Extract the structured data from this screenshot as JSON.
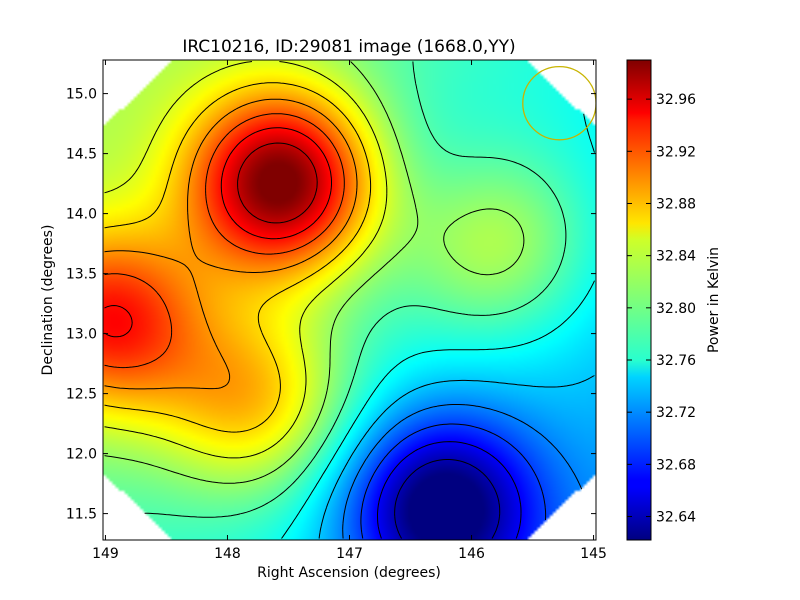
{
  "chart_data": {
    "type": "heatmap",
    "title": "IRC10216, ID:29081 image (1668.0,YY)",
    "xlabel": "Right Ascension (degrees)",
    "ylabel": "Declination (degrees)",
    "xlim": [
      149.02,
      144.98
    ],
    "ylim": [
      11.28,
      15.28
    ],
    "x_reversed": true,
    "x_ticks": [
      149,
      148,
      147,
      146,
      145
    ],
    "x_tick_labels": [
      "149",
      "148",
      "147",
      "146",
      "145"
    ],
    "y_ticks": [
      11.5,
      12.0,
      12.5,
      13.0,
      13.5,
      14.0,
      14.5,
      15.0
    ],
    "y_tick_labels": [
      "11.5",
      "12.0",
      "12.5",
      "13.0",
      "13.5",
      "14.0",
      "14.5",
      "15.0"
    ],
    "colormap": "jet",
    "colorbar": {
      "label": "Power in Kelvin",
      "range": [
        32.622,
        32.99
      ],
      "ticks": [
        32.64,
        32.68,
        32.72,
        32.76,
        32.8,
        32.84,
        32.88,
        32.92,
        32.96
      ],
      "tick_labels": [
        "32.64",
        "32.68",
        "32.72",
        "32.76",
        "32.80",
        "32.84",
        "32.88",
        "32.92",
        "32.96"
      ]
    },
    "field_shape": "octagon",
    "peaks": [
      {
        "ra": 147.55,
        "dec": 14.25,
        "value": 32.98
      },
      {
        "ra": 148.95,
        "dec": 13.1,
        "value": 32.91
      },
      {
        "ra": 146.25,
        "dec": 11.55,
        "value": 32.63
      },
      {
        "ra": 146.4,
        "dec": 14.3,
        "value": 32.76
      },
      {
        "ra": 145.8,
        "dec": 13.75,
        "value": 32.84
      },
      {
        "ra": 147.8,
        "dec": 12.45,
        "value": 32.87
      }
    ],
    "beam": {
      "ra": 145.28,
      "dec": 14.92,
      "radius_deg": 0.3,
      "color": "#c8b400"
    }
  }
}
